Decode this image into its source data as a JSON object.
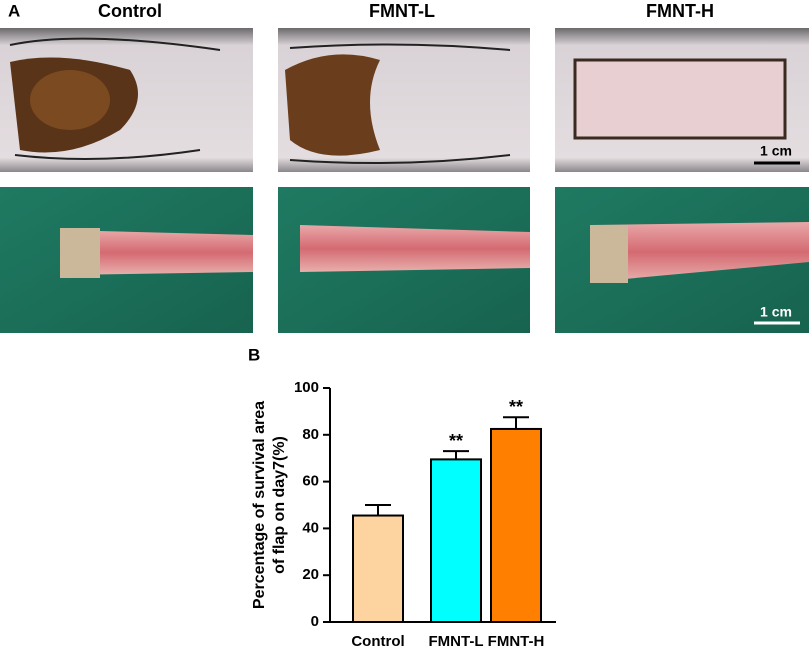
{
  "panel_a": {
    "label": "A",
    "columns": [
      "Control",
      "FMNT-L",
      "FMNT-H"
    ],
    "scale_bar": "1 cm"
  },
  "chart_data": {
    "type": "bar",
    "panel_label": "B",
    "ylabel": [
      "Percentage of survival area",
      "of flap on day7(%)"
    ],
    "categories": [
      "Control",
      "FMNT-L",
      "FMNT-H"
    ],
    "values": [
      45.5,
      69.5,
      82.5
    ],
    "errors": [
      4.5,
      3.5,
      5
    ],
    "annotations": [
      null,
      "**",
      "**"
    ],
    "colors": [
      "#fdd3a0",
      "#00ffff",
      "#ff8000"
    ],
    "ylim": [
      0,
      100
    ],
    "yticks": [
      0,
      20,
      40,
      60,
      80,
      100
    ]
  }
}
